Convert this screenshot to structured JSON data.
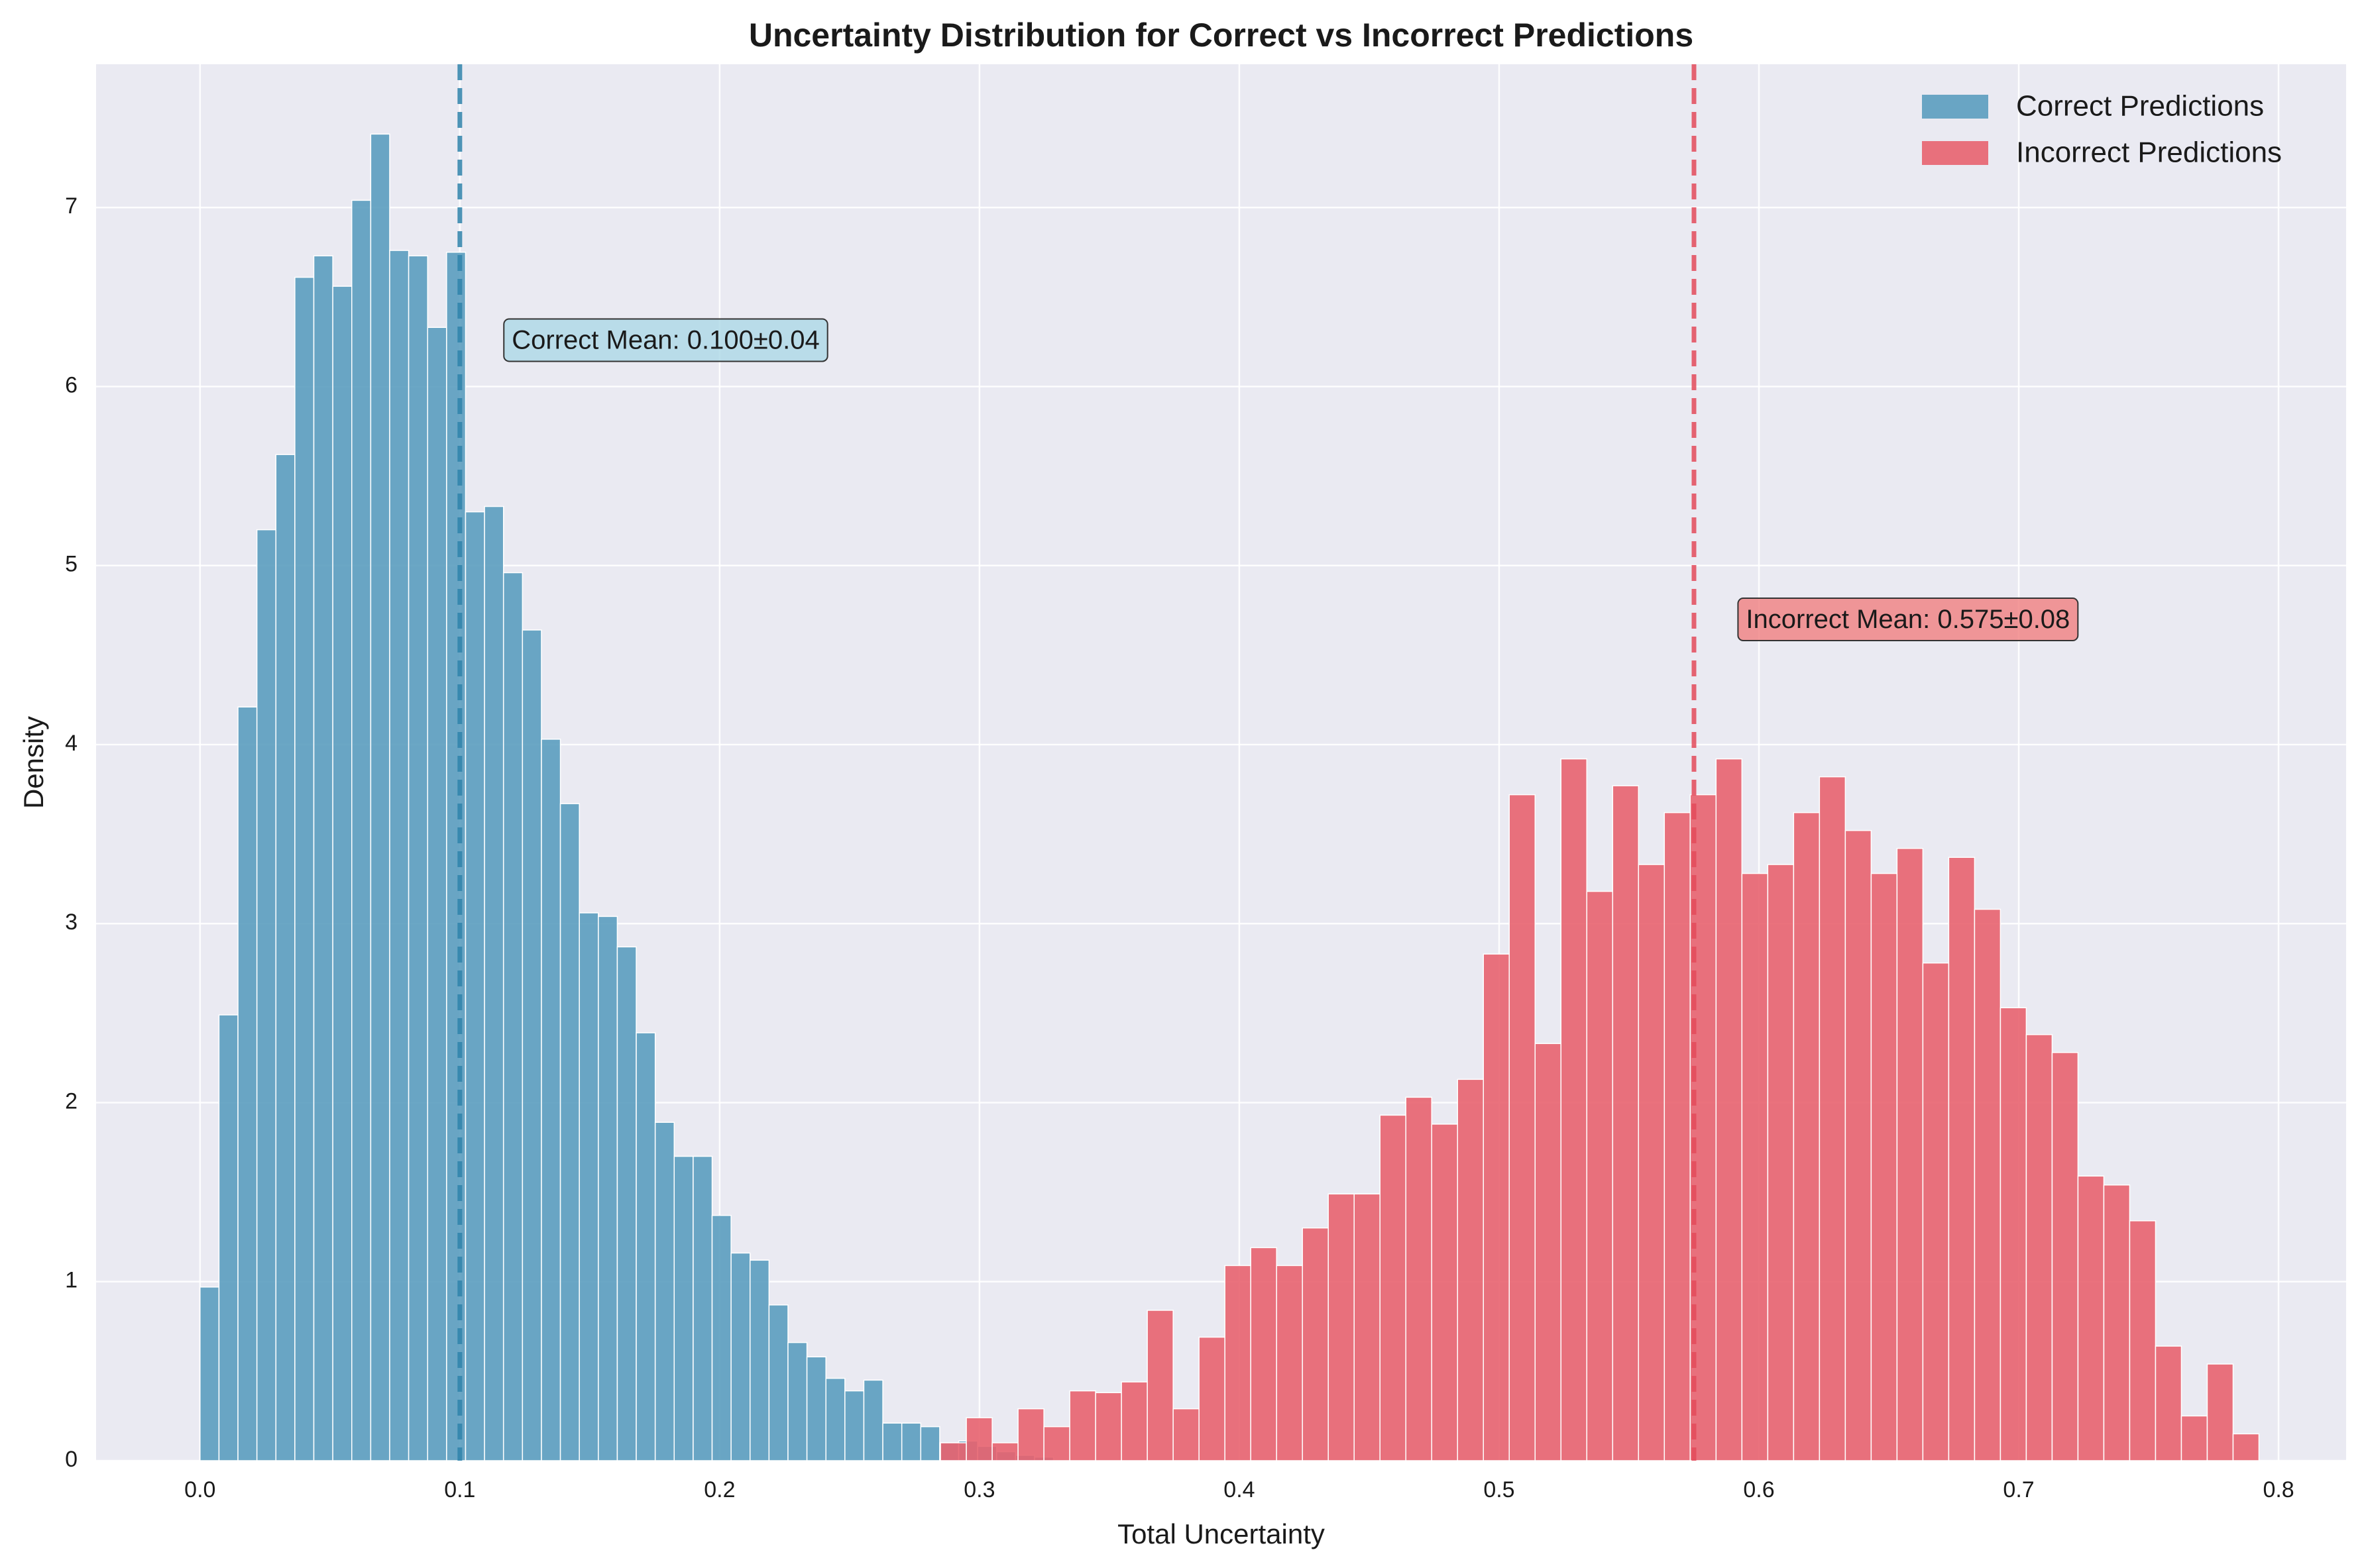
{
  "chart_data": {
    "type": "bar",
    "title": "Uncertainty Distribution for Correct vs Incorrect Predictions",
    "xlabel": "Total Uncertainty",
    "ylabel": "Density",
    "xlim": [
      -0.04,
      0.826
    ],
    "ylim": [
      0,
      7.8
    ],
    "xticks": [
      "0.0",
      "0.1",
      "0.2",
      "0.3",
      "0.4",
      "0.5",
      "0.6",
      "0.7",
      "0.8"
    ],
    "xtick_values": [
      0,
      0.1,
      0.2,
      0.3,
      0.4,
      0.5,
      0.6,
      0.7,
      0.8
    ],
    "yticks": [
      "0",
      "1",
      "2",
      "3",
      "4",
      "5",
      "6",
      "7"
    ],
    "ytick_values": [
      0,
      1,
      2,
      3,
      4,
      5,
      6,
      7
    ],
    "grid": true,
    "legend_position": "top-right",
    "background": "#eaeaf2",
    "series": [
      {
        "name": "Correct Predictions",
        "color": "#5b9dbf",
        "bin_start": 0.0,
        "bin_width": 0.0073,
        "values": [
          0.97,
          2.49,
          4.21,
          5.2,
          5.62,
          6.61,
          6.73,
          6.56,
          7.04,
          7.41,
          6.76,
          6.73,
          6.33,
          6.75,
          5.3,
          5.33,
          4.96,
          4.64,
          4.03,
          3.67,
          3.06,
          3.04,
          2.87,
          2.39,
          1.89,
          1.7,
          1.7,
          1.37,
          1.16,
          1.12,
          0.87,
          0.66,
          0.58,
          0.46,
          0.39,
          0.45,
          0.21,
          0.21,
          0.19,
          0.1,
          0.11,
          0.08,
          0.05,
          0.03,
          0.02
        ]
      },
      {
        "name": "Incorrect Predictions",
        "color": "#e8636f",
        "bin_start": 0.285,
        "bin_width": 0.00995,
        "values": [
          0.1,
          0.24,
          0.1,
          0.29,
          0.19,
          0.39,
          0.38,
          0.44,
          0.84,
          0.29,
          0.69,
          1.09,
          1.19,
          1.09,
          1.3,
          1.49,
          1.49,
          1.93,
          2.03,
          1.88,
          2.13,
          2.83,
          3.72,
          2.33,
          3.92,
          3.18,
          3.77,
          3.33,
          3.62,
          3.72,
          3.92,
          3.28,
          3.33,
          3.62,
          3.82,
          3.52,
          3.28,
          3.42,
          2.78,
          3.37,
          3.08,
          2.53,
          2.38,
          2.28,
          1.59,
          1.54,
          1.34,
          0.64,
          0.25,
          0.54,
          0.15
        ]
      }
    ],
    "mean_lines": [
      {
        "series": "Correct Predictions",
        "x": 0.1,
        "color": "#2f83aa"
      },
      {
        "series": "Incorrect Predictions",
        "x": 0.575,
        "color": "#e34a5b"
      }
    ],
    "annotations": [
      {
        "text": "Correct Mean: 0.100±0.04",
        "x": 0.12,
        "y": 6.25,
        "box_color": "#add8e6"
      },
      {
        "text": "Incorrect Mean: 0.575±0.08",
        "x": 0.595,
        "y": 4.69,
        "box_color": "#f08080"
      }
    ]
  }
}
